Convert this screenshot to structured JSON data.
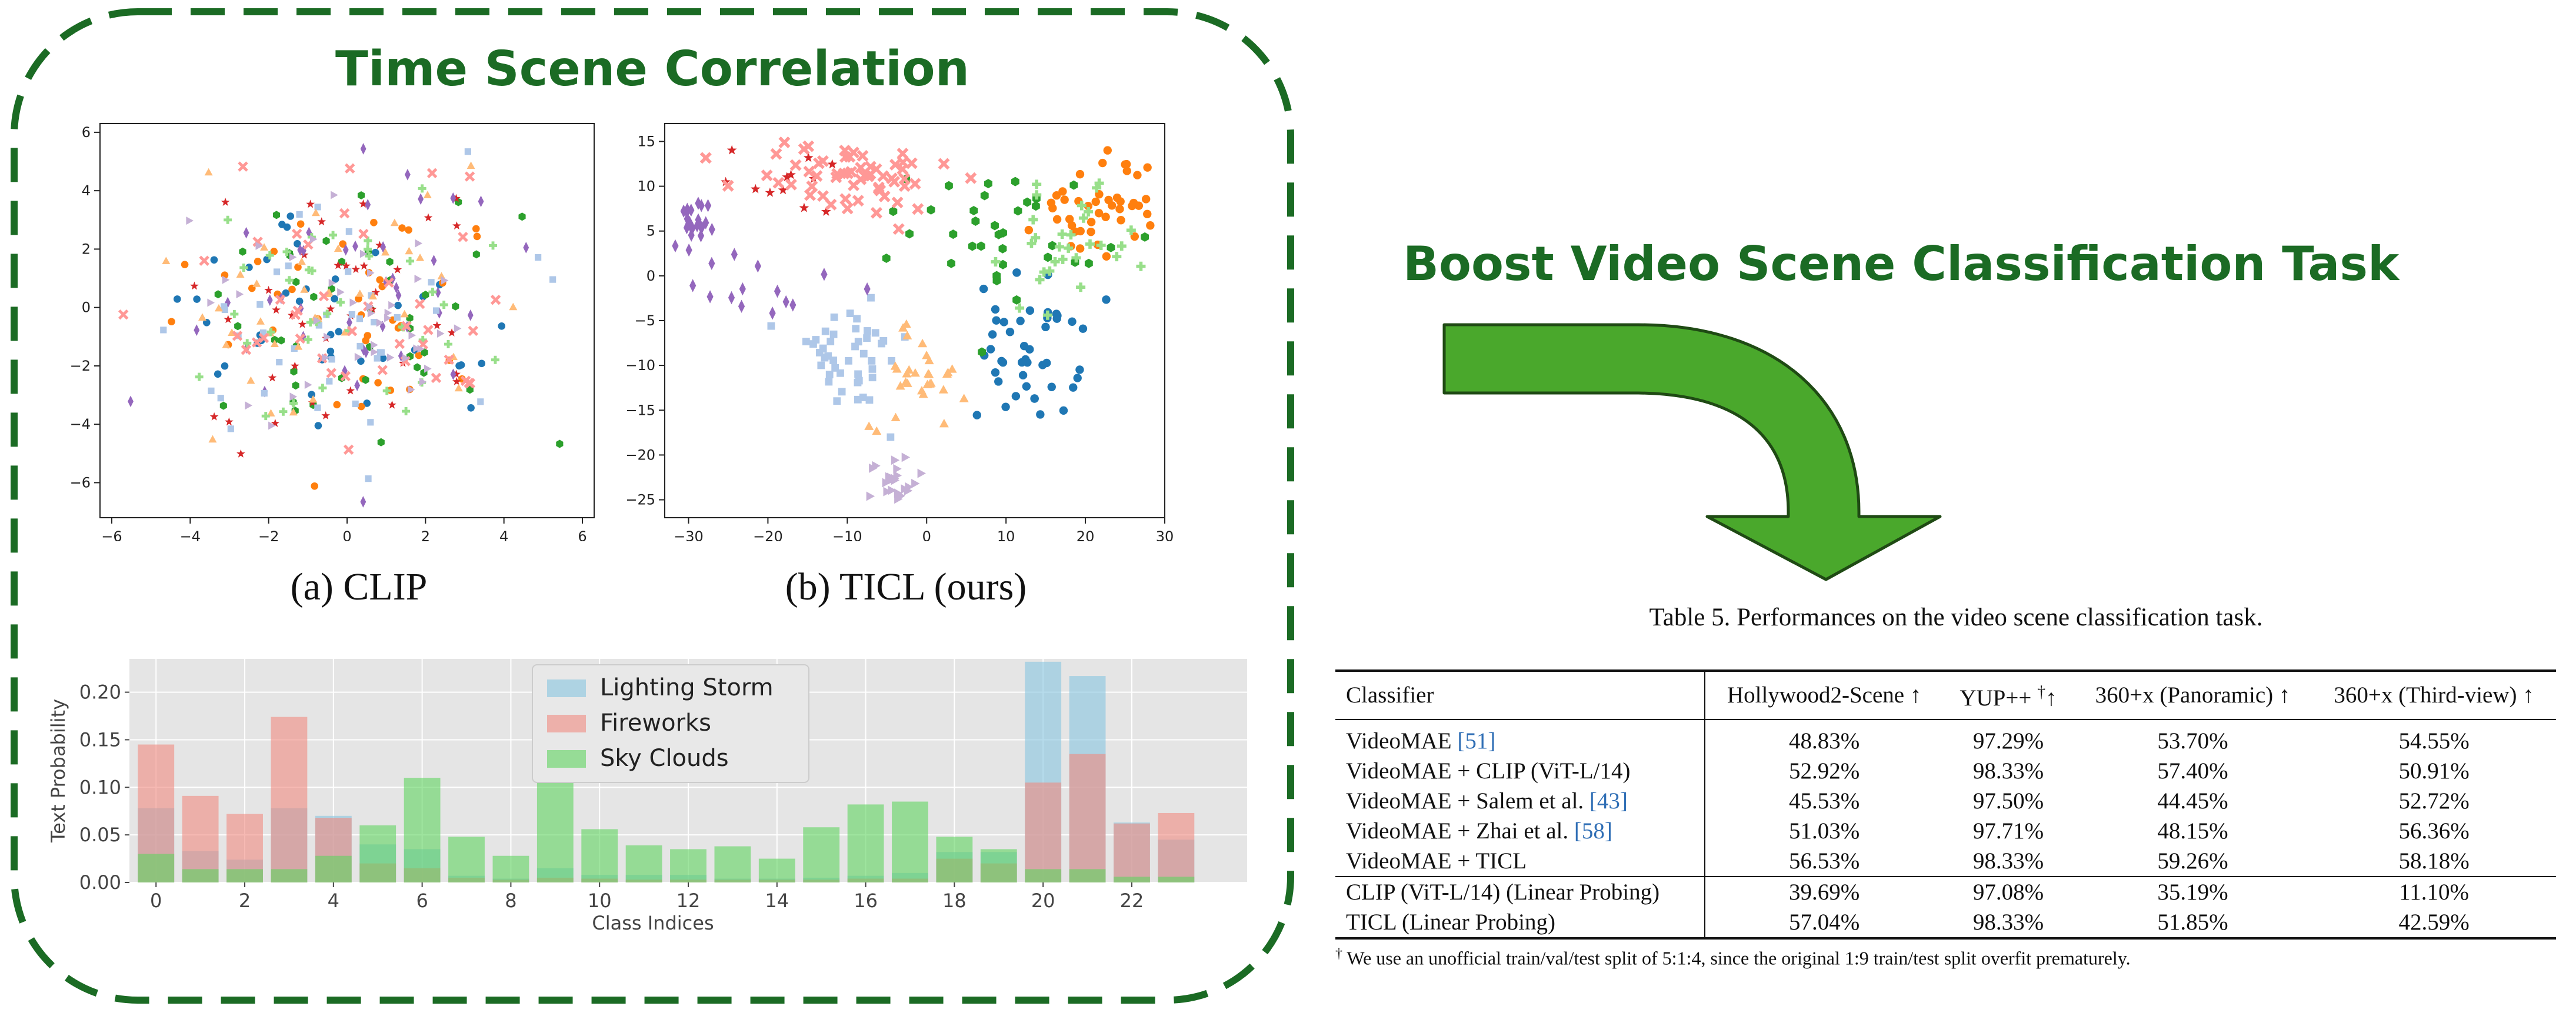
{
  "figure": {
    "title": "Time Scene Correlation",
    "caption_a": "(a) CLIP",
    "caption_b": "(b) TICL (ours)",
    "right_title": "Boost Video Scene Classification Task"
  },
  "colors": {
    "title_green": "#1b6b24",
    "arrow_green": "#4aa82c",
    "class_palette": [
      "#1f77b4",
      "#ff7f0e",
      "#2ca02c",
      "#d62728",
      "#9467bd",
      "#aec7e8",
      "#ffbb78",
      "#98df8a",
      "#ff9896",
      "#c5b0d5"
    ]
  },
  "chart_data": [
    {
      "type": "scatter",
      "title": "",
      "xlim": [
        -6.3,
        6.3
      ],
      "ylim": [
        -7.2,
        6.3
      ],
      "xticks": [
        -6,
        -4,
        -2,
        0,
        2,
        4,
        6
      ],
      "yticks": [
        -6,
        -4,
        -2,
        0,
        2,
        4,
        6
      ],
      "grid": false,
      "xlabel": "",
      "ylabel": ""
    },
    {
      "type": "scatter",
      "title": "",
      "xlim": [
        -33,
        30
      ],
      "ylim": [
        -27,
        17
      ],
      "xticks": [
        -30,
        -20,
        -10,
        0,
        10,
        20,
        30
      ],
      "yticks": [
        -25,
        -20,
        -15,
        -10,
        -5,
        0,
        5,
        10,
        15
      ],
      "grid": false,
      "xlabel": "",
      "ylabel": ""
    },
    {
      "type": "bar",
      "title": "",
      "xlabel": "Class Indices",
      "ylabel": "Text Probability",
      "ylim": [
        0,
        0.235
      ],
      "yticks": [
        0.0,
        0.05,
        0.1,
        0.15,
        0.2
      ],
      "ytick_labels": [
        "0.00",
        "0.05",
        "0.10",
        "0.15",
        "0.20"
      ],
      "xticks": [
        0,
        2,
        4,
        6,
        8,
        10,
        12,
        14,
        16,
        18,
        20,
        22
      ],
      "categories": [
        0,
        1,
        2,
        3,
        4,
        5,
        6,
        7,
        8,
        9,
        10,
        11,
        12,
        13,
        14,
        15,
        16,
        17,
        18,
        19,
        20,
        21,
        22,
        23
      ],
      "legend_position": "top-center",
      "grid": true,
      "series": [
        {
          "name": "Lighting Storm",
          "color": "#87c5e0",
          "values": [
            0.078,
            0.033,
            0.024,
            0.078,
            0.07,
            0.04,
            0.035,
            0.007,
            0.004,
            0.015,
            0.008,
            0.008,
            0.008,
            0.004,
            0.004,
            0.005,
            0.007,
            0.01,
            0.032,
            0.032,
            0.232,
            0.217,
            0.063,
            0.045
          ]
        },
        {
          "name": "Fireworks",
          "color": "#f08a80",
          "values": [
            0.145,
            0.091,
            0.072,
            0.174,
            0.068,
            0.02,
            0.015,
            0.005,
            0.003,
            0.005,
            0.004,
            0.003,
            0.003,
            0.003,
            0.003,
            0.003,
            0.004,
            0.004,
            0.025,
            0.02,
            0.105,
            0.135,
            0.062,
            0.073
          ]
        },
        {
          "name": "Sky Clouds",
          "color": "#5fd45f",
          "values": [
            0.03,
            0.014,
            0.014,
            0.014,
            0.028,
            0.06,
            0.11,
            0.048,
            0.028,
            0.108,
            0.056,
            0.039,
            0.035,
            0.038,
            0.025,
            0.058,
            0.082,
            0.085,
            0.048,
            0.035,
            0.014,
            0.014,
            0.006,
            0.006
          ]
        }
      ]
    }
  ],
  "table": {
    "caption": "Table 5. Performances on the video scene classification task.",
    "headers": [
      "Classifier",
      "Hollywood2-Scene ↑",
      "YUP++ ",
      "†",
      "↑",
      "360+x (Panoramic) ↑",
      "360+x (Third-view) ↑"
    ],
    "rows": [
      {
        "name": "VideoMAE ",
        "ref": "[51]",
        "rest": "",
        "v": [
          "48.83%",
          "97.29%",
          "53.70%",
          "54.55%"
        ]
      },
      {
        "name": "VideoMAE + CLIP (ViT-L/14)",
        "ref": "",
        "rest": "",
        "v": [
          "52.92%",
          "98.33%",
          "57.40%",
          "50.91%"
        ]
      },
      {
        "name": "VideoMAE + Salem et al. ",
        "ref": "[43]",
        "rest": "",
        "v": [
          "45.53%",
          "97.50%",
          "44.45%",
          "52.72%"
        ]
      },
      {
        "name": "VideoMAE + Zhai et al. ",
        "ref": "[58]",
        "rest": "",
        "v": [
          "51.03%",
          "97.71%",
          "48.15%",
          "56.36%"
        ]
      },
      {
        "name": "VideoMAE + TICL",
        "ref": "",
        "rest": "",
        "v": [
          "56.53%",
          "98.33%",
          "59.26%",
          "58.18%"
        ]
      },
      {
        "name": "CLIP (ViT-L/14) (Linear Probing)",
        "ref": "",
        "rest": "",
        "v": [
          "39.69%",
          "97.08%",
          "35.19%",
          "11.10%"
        ]
      },
      {
        "name": "TICL (Linear Probing)",
        "ref": "",
        "rest": "",
        "v": [
          "57.04%",
          "98.33%",
          "51.85%",
          "42.59%"
        ]
      }
    ],
    "footnote_mark": "†",
    "footnote": " We use an unofficial train/val/test split of 5:1:4, since the original 1:9 train/test split overfit prematurely."
  }
}
